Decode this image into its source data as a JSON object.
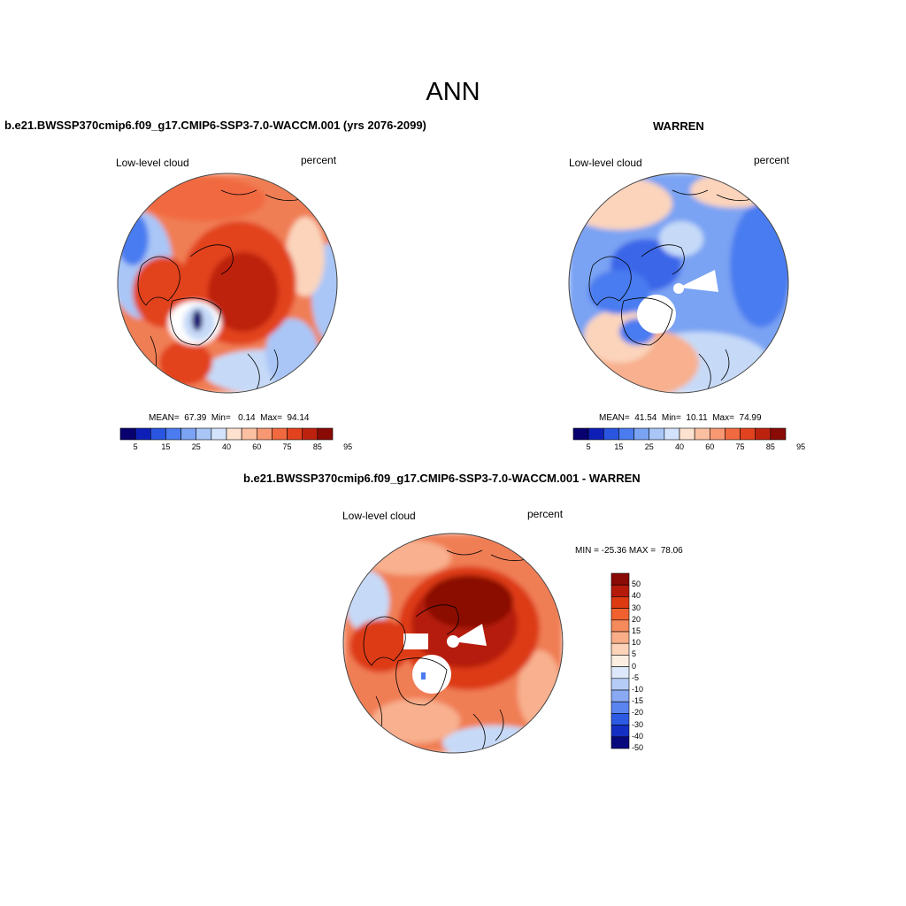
{
  "title": "ANN",
  "panels": [
    {
      "title": "b.e21.BWSSP370cmip6.f09_g17.CMIP6-SSP3-7.0-WACCM.001 (yrs 2076-2099)",
      "left_label": "Low-level cloud",
      "right_label": "percent",
      "stats": "MEAN=  67.39  Min=   0.14  Max=  94.14",
      "tick_labels": [
        "5",
        "15",
        "25",
        "40",
        "60",
        "75",
        "85",
        "95"
      ]
    },
    {
      "title": "WARREN",
      "left_label": "Low-level cloud",
      "right_label": "percent",
      "stats": "MEAN=  41.54  Min=  10.11  Max=  74.99",
      "tick_labels": [
        "5",
        "15",
        "25",
        "40",
        "60",
        "75",
        "85",
        "95"
      ]
    },
    {
      "title": "b.e21.BWSSP370cmip6.f09_g17.CMIP6-SSP3-7.0-WACCM.001 - WARREN",
      "left_label": "Low-level cloud",
      "right_label": "percent",
      "stats": "MIN = -25.36 MAX =  78.06",
      "tick_labels": [
        "50",
        "40",
        "30",
        "20",
        "15",
        "10",
        "5",
        "0",
        "-5",
        "-10",
        "-15",
        "-20",
        "-30",
        "-40",
        "-50"
      ]
    }
  ],
  "colors": {
    "seq_colorbar": [
      "#08006e",
      "#0d1fb6",
      "#2a55e0",
      "#4a7cf0",
      "#7aa3f3",
      "#a9c6f7",
      "#d3e3fb",
      "#fde2d0",
      "#fbbfa1",
      "#f79872",
      "#f1693f",
      "#e2431e",
      "#bd220f",
      "#8a0a06"
    ],
    "diff_colorbar": [
      "#8a0a06",
      "#b51a0b",
      "#dd3a12",
      "#f0612f",
      "#f58a5c",
      "#f9ae88",
      "#fcd2b8",
      "#fdeee2",
      "#dde9fb",
      "#b5cdf6",
      "#8aa9f3",
      "#5a84ef",
      "#2d5ae3",
      "#1430c4",
      "#08087e"
    ],
    "map_red_dark": "#b92a10",
    "map_red": "#e2431e",
    "map_orange": "#f07e55",
    "map_salmon": "#f8b08e",
    "map_peach": "#fbd4bb",
    "map_blue_light": "#c6daf8",
    "map_blue": "#7aa3f3",
    "map_blue_dark": "#3b66e8"
  }
}
